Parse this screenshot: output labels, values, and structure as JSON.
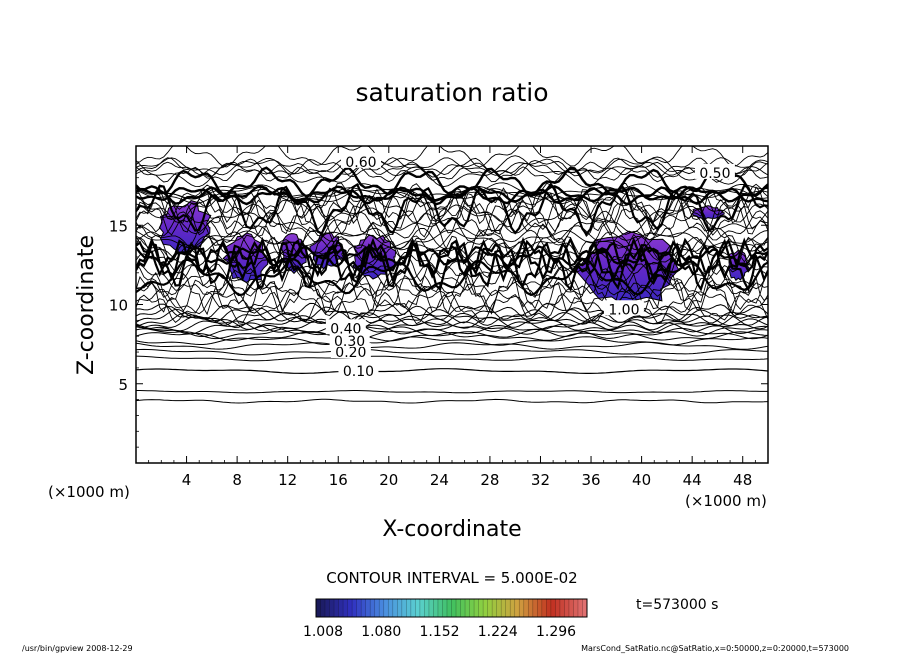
{
  "chart_data": {
    "type": "contour",
    "title": "saturation ratio",
    "xlabel": "X-coordinate",
    "ylabel": "Z-coordinate",
    "x_unit": "(×1000 m)",
    "y_unit": "(×1000 m)",
    "xlim": [
      0,
      50
    ],
    "ylim": [
      0,
      20
    ],
    "x_ticks": [
      4,
      8,
      12,
      16,
      20,
      24,
      28,
      32,
      36,
      40,
      44,
      48
    ],
    "y_ticks": [
      5,
      10,
      15
    ],
    "contour_interval_text": "CONTOUR INTERVAL = 5.000E-02",
    "time_text": "t=573000 s",
    "contour_levels": [
      {
        "label": "0.10",
        "z": 5.8
      },
      {
        "label": "0.20",
        "z": 7.0
      },
      {
        "label": "0.30",
        "z": 7.7
      },
      {
        "label": "0.40",
        "z": 8.5
      },
      {
        "label": "0.50",
        "z": 18.3
      },
      {
        "label": "0.60",
        "z": 19.0
      },
      {
        "label": "1.00",
        "z": 9.7
      }
    ],
    "supersaturated_regions": [
      {
        "x": [
          1.7,
          6.0
        ],
        "z": [
          13.2,
          16.5
        ]
      },
      {
        "x": [
          7.0,
          10.5
        ],
        "z": [
          11.3,
          14.5
        ]
      },
      {
        "x": [
          11.5,
          13.5
        ],
        "z": [
          12.0,
          14.5
        ]
      },
      {
        "x": [
          13.8,
          16.5
        ],
        "z": [
          12.3,
          14.5
        ]
      },
      {
        "x": [
          17.0,
          20.5
        ],
        "z": [
          11.5,
          14.5
        ]
      },
      {
        "x": [
          35.0,
          43.0
        ],
        "z": [
          9.8,
          14.5
        ]
      },
      {
        "x": [
          44.0,
          46.5
        ],
        "z": [
          15.4,
          16.2
        ]
      },
      {
        "x": [
          46.8,
          48.5
        ],
        "z": [
          11.5,
          13.5
        ]
      }
    ],
    "colorbar": {
      "tick_labels": [
        "1.008",
        "1.080",
        "1.152",
        "1.224",
        "1.296"
      ],
      "min": 1.008,
      "max": 1.296,
      "colors": [
        "#1a1a5a",
        "#3030c0",
        "#4a8fe0",
        "#5ad0d0",
        "#40c060",
        "#90d040",
        "#d0a040",
        "#c03020",
        "#e07070"
      ]
    },
    "footer_left": "/usr/bin/gpview   2008-12-29",
    "footer_right": "MarsCond_SatRatio.nc@SatRatio,x=0:50000,z=0:20000,t=573000"
  }
}
